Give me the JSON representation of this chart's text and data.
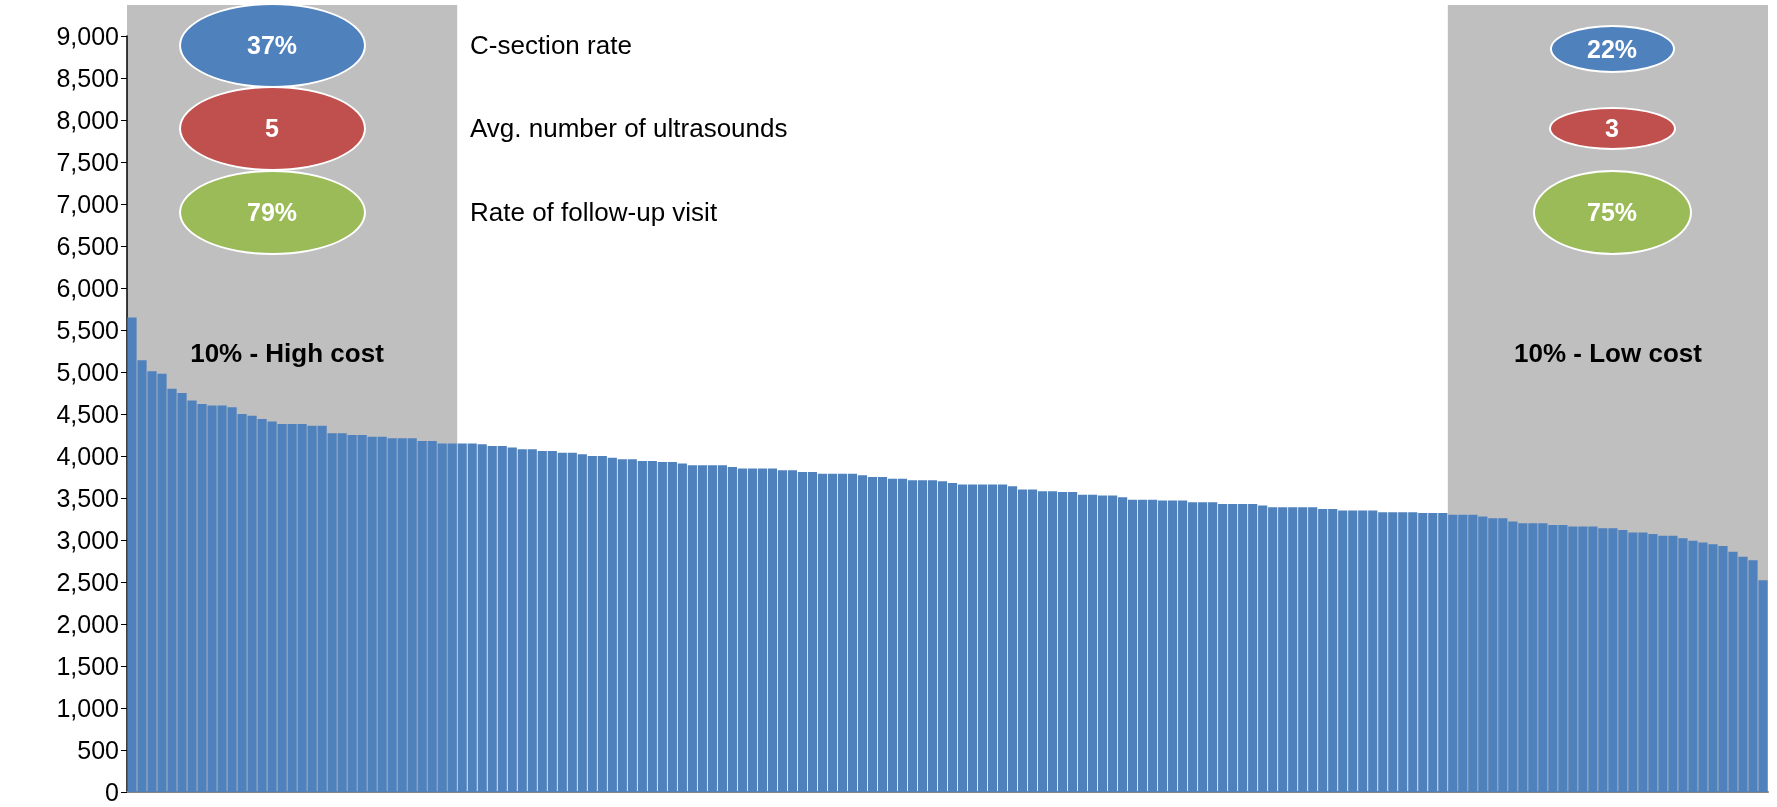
{
  "chart_data": {
    "type": "bar",
    "categories": [
      null,
      null,
      null,
      null,
      null,
      null,
      null,
      null,
      null,
      null,
      null,
      null,
      null,
      null,
      null,
      null,
      null,
      null,
      null,
      null,
      null,
      null,
      null,
      null,
      null,
      null,
      null,
      null,
      null,
      null,
      null,
      null,
      null,
      null,
      null,
      null,
      null,
      null,
      null,
      null,
      null,
      null,
      null,
      null,
      null,
      null,
      null,
      null,
      null,
      null,
      null,
      null,
      null,
      null,
      null,
      null,
      null,
      null,
      null,
      null,
      null,
      null,
      null,
      null,
      null,
      null,
      null,
      null,
      null,
      null,
      null,
      null,
      null,
      null,
      null,
      null,
      null,
      null,
      null,
      null,
      null,
      null,
      null,
      null,
      null,
      null,
      null,
      null,
      null,
      null,
      null,
      null,
      null,
      null,
      null,
      null,
      null,
      null,
      null,
      null,
      null,
      null,
      null,
      null,
      null,
      null,
      null,
      null,
      null,
      null,
      null,
      null,
      null,
      null,
      null,
      null,
      null,
      null,
      null,
      null,
      null,
      null,
      null,
      null,
      null,
      null,
      null,
      null,
      null,
      null,
      null,
      null,
      null,
      null,
      null,
      null,
      null,
      null,
      null,
      null,
      null,
      null,
      null,
      null,
      null,
      null,
      null,
      null,
      null,
      null,
      null,
      null,
      null,
      null,
      null,
      null,
      null,
      null,
      null,
      null,
      null,
      null,
      null,
      null
    ],
    "values": [
      5650,
      5140,
      5010,
      4980,
      4800,
      4750,
      4660,
      4620,
      4600,
      4600,
      4580,
      4500,
      4480,
      4440,
      4410,
      4380,
      4380,
      4380,
      4360,
      4360,
      4270,
      4270,
      4250,
      4250,
      4230,
      4230,
      4210,
      4210,
      4210,
      4180,
      4180,
      4150,
      4150,
      4150,
      4150,
      4140,
      4120,
      4120,
      4100,
      4080,
      4080,
      4060,
      4060,
      4040,
      4040,
      4020,
      4000,
      4000,
      3980,
      3960,
      3960,
      3940,
      3940,
      3930,
      3930,
      3910,
      3890,
      3890,
      3890,
      3890,
      3870,
      3850,
      3850,
      3850,
      3850,
      3830,
      3830,
      3810,
      3810,
      3790,
      3790,
      3790,
      3790,
      3770,
      3750,
      3750,
      3730,
      3730,
      3710,
      3710,
      3710,
      3700,
      3680,
      3660,
      3660,
      3660,
      3660,
      3660,
      3640,
      3600,
      3600,
      3580,
      3580,
      3570,
      3570,
      3540,
      3540,
      3530,
      3530,
      3510,
      3480,
      3480,
      3480,
      3470,
      3470,
      3470,
      3450,
      3450,
      3450,
      3430,
      3430,
      3430,
      3430,
      3410,
      3390,
      3390,
      3390,
      3390,
      3390,
      3370,
      3370,
      3350,
      3350,
      3350,
      3350,
      3330,
      3330,
      3330,
      3330,
      3320,
      3320,
      3320,
      3300,
      3300,
      3300,
      3280,
      3260,
      3260,
      3220,
      3200,
      3200,
      3200,
      3180,
      3180,
      3160,
      3160,
      3160,
      3140,
      3140,
      3120,
      3090,
      3090,
      3070,
      3050,
      3050,
      3020,
      2990,
      2970,
      2950,
      2930,
      2860,
      2800,
      2760,
      2520
    ],
    "color": "#4f81bd",
    "ylim": [
      0,
      9000
    ],
    "yticks": [
      0,
      500,
      {
        "value": 1000,
        "label": "1,000"
      },
      {
        "value": 1500,
        "label": "1,500"
      },
      {
        "value": 2000,
        "label": "2,000"
      },
      {
        "value": 2500,
        "label": "2,500"
      },
      {
        "value": 3000,
        "label": "3,000"
      },
      {
        "value": 3500,
        "label": "3,500"
      },
      {
        "value": 4000,
        "label": "4,000"
      },
      {
        "value": 4500,
        "label": "4,500"
      },
      {
        "value": 5000,
        "label": "5,000"
      },
      {
        "value": 5500,
        "label": "5,500"
      },
      {
        "value": 6000,
        "label": "6,000"
      },
      {
        "value": 6500,
        "label": "6,500"
      },
      {
        "value": 7000,
        "label": "7,000"
      },
      {
        "value": 7500,
        "label": "7,500"
      },
      {
        "value": 8000,
        "label": "8,000"
      },
      {
        "value": 8500,
        "label": "8,500"
      },
      {
        "value": 9000,
        "label": "9,000"
      }
    ],
    "tick_labels": "y",
    "annotations": [
      "37%",
      "5",
      "79%",
      "C-section rate",
      "Avg. number of ultrasounds",
      "Rate of follow-up visit",
      "22%",
      "3",
      "75%",
      "10% - High cost",
      "10% - Low cost"
    ]
  }
}
